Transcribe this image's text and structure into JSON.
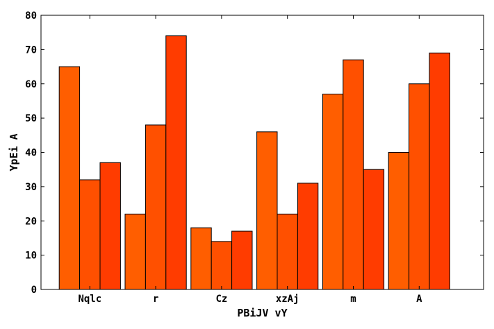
{
  "chart_data": {
    "type": "bar",
    "title": "",
    "xlabel": "PBiJV vY",
    "ylabel": "YpEi A",
    "categories": [
      "Nqlc",
      "r",
      "Cz",
      "xzAj",
      "m",
      "A"
    ],
    "series": [
      {
        "values": [
          65,
          22,
          18,
          46,
          57,
          40
        ],
        "color": "#ff5e00"
      },
      {
        "values": [
          32,
          48,
          14,
          22,
          67,
          60
        ],
        "color": "#ff5000"
      },
      {
        "values": [
          37,
          74,
          17,
          31,
          35,
          69
        ],
        "color": "#ff3c00"
      }
    ],
    "ylim": [
      0,
      80
    ],
    "yticks": [
      0,
      10,
      20,
      30,
      40,
      50,
      60,
      70,
      80
    ],
    "grid": false,
    "legend": "none"
  }
}
